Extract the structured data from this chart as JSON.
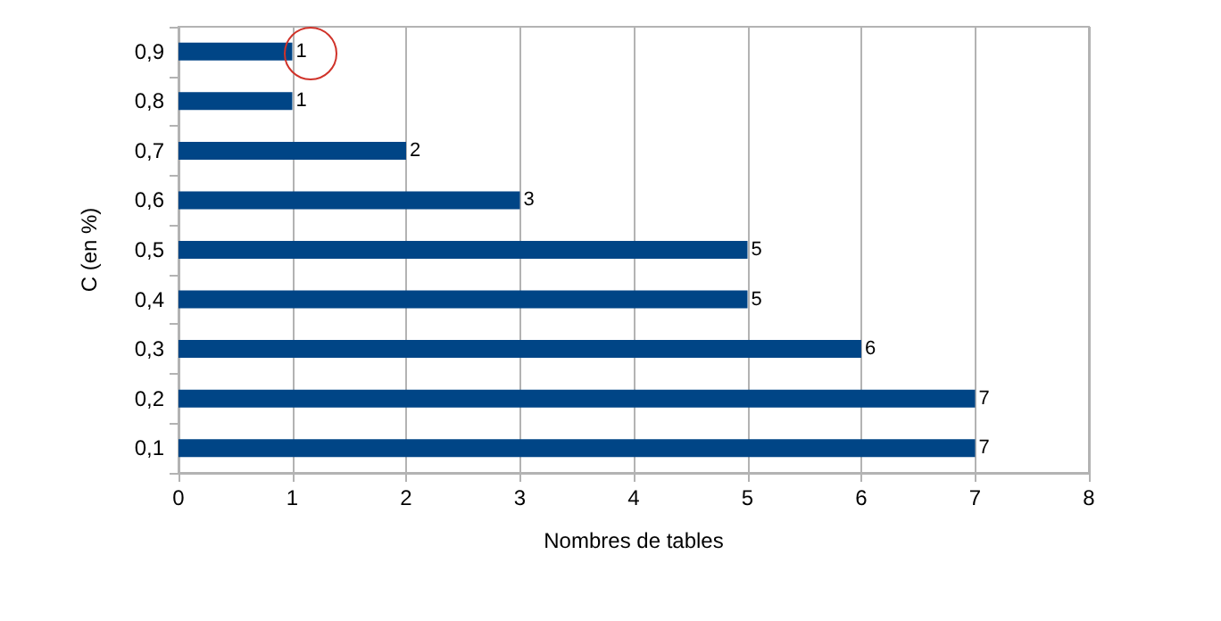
{
  "chart_data": {
    "type": "bar",
    "orientation": "horizontal",
    "xlabel": "Nombres de tables",
    "ylabel": "C (en %)",
    "categories": [
      "0,9",
      "0,8",
      "0,7",
      "0,6",
      "0,5",
      "0,4",
      "0,3",
      "0,2",
      "0,1"
    ],
    "values": [
      1,
      1,
      2,
      3,
      5,
      5,
      6,
      7,
      7
    ],
    "color": "#004586",
    "xlim": [
      0,
      8
    ],
    "xticks": [
      0,
      1,
      2,
      3,
      4,
      5,
      6,
      7,
      8
    ],
    "grid": "x",
    "data_labels": true
  }
}
